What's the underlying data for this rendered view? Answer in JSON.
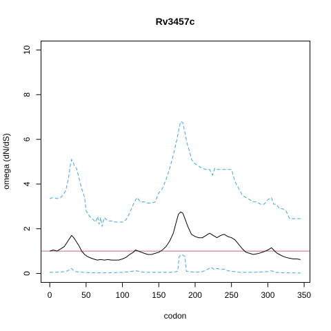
{
  "chart_data": {
    "type": "line",
    "title": "Rv3457c",
    "xlabel": "codon",
    "ylabel": "omega (dN/dS)",
    "xlim": [
      -12,
      358
    ],
    "ylim": [
      -0.4,
      10.4
    ],
    "x_ticks": [
      0,
      50,
      100,
      150,
      200,
      250,
      300,
      350
    ],
    "y_ticks": [
      0,
      2,
      4,
      6,
      8,
      10
    ],
    "reference_line": {
      "y": 1,
      "color": "#c0609c"
    },
    "grid": false,
    "series": [
      {
        "key": "upper",
        "style": "dashed",
        "color": "#36a6e8",
        "points": [
          [
            0,
            3.35
          ],
          [
            5,
            3.4
          ],
          [
            10,
            3.35
          ],
          [
            15,
            3.4
          ],
          [
            18,
            3.5
          ],
          [
            22,
            3.7
          ],
          [
            26,
            4.3
          ],
          [
            28,
            4.8
          ],
          [
            30,
            5.1
          ],
          [
            32,
            5.0
          ],
          [
            34,
            4.8
          ],
          [
            37,
            4.7
          ],
          [
            40,
            4.3
          ],
          [
            44,
            3.8
          ],
          [
            48,
            3.4
          ],
          [
            50,
            2.8
          ],
          [
            55,
            2.55
          ],
          [
            60,
            2.4
          ],
          [
            63,
            2.3
          ],
          [
            66,
            2.55
          ],
          [
            68,
            2.2
          ],
          [
            70,
            2.5
          ],
          [
            72,
            2.1
          ],
          [
            75,
            2.5
          ],
          [
            80,
            2.35
          ],
          [
            85,
            2.35
          ],
          [
            90,
            2.3
          ],
          [
            95,
            2.3
          ],
          [
            100,
            2.3
          ],
          [
            105,
            2.4
          ],
          [
            110,
            2.7
          ],
          [
            115,
            3.1
          ],
          [
            120,
            3.4
          ],
          [
            125,
            3.2
          ],
          [
            130,
            3.2
          ],
          [
            135,
            3.15
          ],
          [
            140,
            3.15
          ],
          [
            145,
            3.2
          ],
          [
            150,
            3.6
          ],
          [
            155,
            3.8
          ],
          [
            160,
            4.2
          ],
          [
            165,
            4.7
          ],
          [
            170,
            5.3
          ],
          [
            175,
            6.0
          ],
          [
            178,
            6.5
          ],
          [
            180,
            6.8
          ],
          [
            183,
            6.75
          ],
          [
            186,
            6.3
          ],
          [
            189,
            5.8
          ],
          [
            192,
            5.5
          ],
          [
            195,
            5.1
          ],
          [
            200,
            4.9
          ],
          [
            205,
            4.8
          ],
          [
            210,
            4.7
          ],
          [
            215,
            4.65
          ],
          [
            220,
            4.65
          ],
          [
            224,
            4.4
          ],
          [
            227,
            4.7
          ],
          [
            230,
            4.65
          ],
          [
            235,
            4.65
          ],
          [
            240,
            4.65
          ],
          [
            245,
            4.65
          ],
          [
            250,
            4.65
          ],
          [
            255,
            4.1
          ],
          [
            260,
            3.8
          ],
          [
            265,
            3.5
          ],
          [
            270,
            3.4
          ],
          [
            275,
            3.3
          ],
          [
            280,
            3.2
          ],
          [
            285,
            3.2
          ],
          [
            290,
            3.1
          ],
          [
            295,
            3.1
          ],
          [
            300,
            3.3
          ],
          [
            305,
            3.4
          ],
          [
            308,
            3.1
          ],
          [
            312,
            3.1
          ],
          [
            316,
            2.9
          ],
          [
            320,
            2.9
          ],
          [
            325,
            2.8
          ],
          [
            330,
            2.45
          ],
          [
            335,
            2.45
          ],
          [
            340,
            2.45
          ],
          [
            345,
            2.45
          ]
        ]
      },
      {
        "key": "estimate",
        "style": "solid",
        "color": "#000000",
        "points": [
          [
            0,
            1.0
          ],
          [
            5,
            1.05
          ],
          [
            10,
            1.0
          ],
          [
            15,
            1.1
          ],
          [
            20,
            1.2
          ],
          [
            25,
            1.45
          ],
          [
            28,
            1.6
          ],
          [
            30,
            1.7
          ],
          [
            33,
            1.6
          ],
          [
            36,
            1.45
          ],
          [
            40,
            1.25
          ],
          [
            44,
            1.0
          ],
          [
            48,
            0.85
          ],
          [
            52,
            0.75
          ],
          [
            56,
            0.7
          ],
          [
            60,
            0.65
          ],
          [
            65,
            0.6
          ],
          [
            70,
            0.62
          ],
          [
            75,
            0.6
          ],
          [
            80,
            0.62
          ],
          [
            85,
            0.6
          ],
          [
            90,
            0.6
          ],
          [
            95,
            0.6
          ],
          [
            100,
            0.65
          ],
          [
            105,
            0.72
          ],
          [
            110,
            0.85
          ],
          [
            115,
            0.95
          ],
          [
            118,
            1.05
          ],
          [
            122,
            1.0
          ],
          [
            126,
            0.95
          ],
          [
            130,
            0.9
          ],
          [
            135,
            0.85
          ],
          [
            140,
            0.85
          ],
          [
            145,
            0.9
          ],
          [
            150,
            0.95
          ],
          [
            155,
            1.05
          ],
          [
            160,
            1.2
          ],
          [
            165,
            1.45
          ],
          [
            170,
            1.8
          ],
          [
            174,
            2.3
          ],
          [
            177,
            2.65
          ],
          [
            180,
            2.75
          ],
          [
            183,
            2.7
          ],
          [
            186,
            2.45
          ],
          [
            190,
            2.1
          ],
          [
            195,
            1.75
          ],
          [
            200,
            1.65
          ],
          [
            205,
            1.6
          ],
          [
            210,
            1.6
          ],
          [
            215,
            1.7
          ],
          [
            220,
            1.8
          ],
          [
            225,
            1.7
          ],
          [
            230,
            1.6
          ],
          [
            235,
            1.7
          ],
          [
            240,
            1.75
          ],
          [
            245,
            1.65
          ],
          [
            250,
            1.6
          ],
          [
            255,
            1.5
          ],
          [
            260,
            1.3
          ],
          [
            265,
            1.1
          ],
          [
            270,
            0.95
          ],
          [
            275,
            0.9
          ],
          [
            280,
            0.85
          ],
          [
            285,
            0.88
          ],
          [
            290,
            0.92
          ],
          [
            295,
            0.98
          ],
          [
            300,
            1.05
          ],
          [
            305,
            1.15
          ],
          [
            308,
            1.05
          ],
          [
            312,
            0.92
          ],
          [
            316,
            0.85
          ],
          [
            320,
            0.78
          ],
          [
            325,
            0.72
          ],
          [
            330,
            0.68
          ],
          [
            335,
            0.65
          ],
          [
            340,
            0.65
          ],
          [
            345,
            0.62
          ]
        ]
      },
      {
        "key": "lower",
        "style": "dashed",
        "color": "#36a6e8",
        "points": [
          [
            0,
            0.05
          ],
          [
            10,
            0.05
          ],
          [
            20,
            0.08
          ],
          [
            25,
            0.12
          ],
          [
            28,
            0.2
          ],
          [
            30,
            0.22
          ],
          [
            32,
            0.15
          ],
          [
            35,
            0.08
          ],
          [
            45,
            0.05
          ],
          [
            60,
            0.03
          ],
          [
            80,
            0.03
          ],
          [
            100,
            0.05
          ],
          [
            110,
            0.08
          ],
          [
            118,
            0.12
          ],
          [
            122,
            0.1
          ],
          [
            130,
            0.05
          ],
          [
            150,
            0.05
          ],
          [
            170,
            0.05
          ],
          [
            176,
            0.1
          ],
          [
            178,
            0.75
          ],
          [
            182,
            0.85
          ],
          [
            186,
            0.75
          ],
          [
            188,
            0.1
          ],
          [
            200,
            0.05
          ],
          [
            210,
            0.08
          ],
          [
            218,
            0.2
          ],
          [
            222,
            0.28
          ],
          [
            226,
            0.18
          ],
          [
            230,
            0.22
          ],
          [
            235,
            0.18
          ],
          [
            240,
            0.2
          ],
          [
            245,
            0.12
          ],
          [
            250,
            0.1
          ],
          [
            260,
            0.05
          ],
          [
            280,
            0.05
          ],
          [
            300,
            0.08
          ],
          [
            305,
            0.12
          ],
          [
            310,
            0.05
          ],
          [
            320,
            0.03
          ],
          [
            345,
            0.02
          ]
        ]
      }
    ]
  }
}
